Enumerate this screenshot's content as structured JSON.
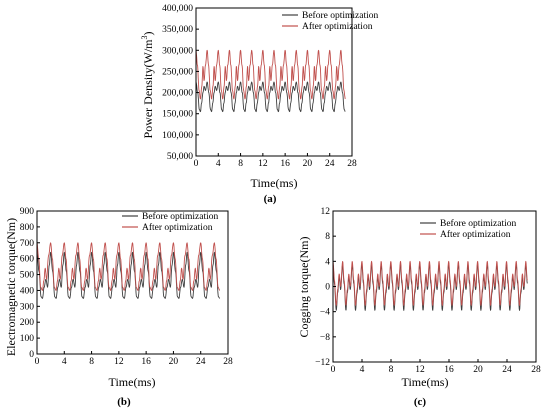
{
  "colors": {
    "before": "#3f3f3f",
    "after": "#c0504d",
    "axis": "#000000",
    "background": "#ffffff"
  },
  "chart_data": [
    {
      "panel": "(a)",
      "type": "line",
      "xlabel": "Time(ms)",
      "ylabel_main": "Power Density(W/m",
      "ylabel_sup": "3",
      "ylabel_close": ")",
      "xlim": [
        0,
        28
      ],
      "ylim": [
        50000,
        400000
      ],
      "xticks": [
        0,
        4,
        8,
        12,
        16,
        20,
        24,
        28
      ],
      "yticks": [
        50000,
        100000,
        150000,
        200000,
        250000,
        300000,
        350000,
        400000
      ],
      "ytick_labels": [
        "50,000",
        "100,000",
        "150,000",
        "200,000",
        "250,000",
        "300,000",
        "350,000",
        "400,000"
      ],
      "xtick_labels": [
        "0",
        "4",
        "8",
        "12",
        "16",
        "20",
        "24",
        "28"
      ],
      "legend_position": "top-right",
      "grid": false,
      "signal_x_range": [
        0,
        26.8
      ],
      "series": [
        {
          "name": "Before optimization",
          "color_key": "before",
          "period_ms": 2.0,
          "waveform": [
            [
              0,
              225000
            ],
            [
              0.3,
              200000
            ],
            [
              0.6,
              160000
            ],
            [
              0.8,
              155000
            ],
            [
              1.0,
              175000
            ],
            [
              1.25,
              200000
            ],
            [
              1.45,
              215000
            ],
            [
              1.7,
              205000
            ],
            [
              2.0,
              225000
            ]
          ]
        },
        {
          "name": "After optimization",
          "color_key": "after",
          "period_ms": 2.0,
          "waveform": [
            [
              0,
              300000
            ],
            [
              0.25,
              265000
            ],
            [
              0.55,
              205000
            ],
            [
              0.8,
              185000
            ],
            [
              1.05,
              215000
            ],
            [
              1.25,
              262000
            ],
            [
              1.45,
              228000
            ],
            [
              1.7,
              265000
            ],
            [
              2.0,
              300000
            ]
          ]
        }
      ]
    },
    {
      "panel": "(b)",
      "type": "line",
      "xlabel": "Time(ms)",
      "ylabel": "Electromagnetic torque(Nm)",
      "xlim": [
        0,
        28
      ],
      "ylim": [
        0,
        900
      ],
      "xticks": [
        0,
        4,
        8,
        12,
        16,
        20,
        24,
        28
      ],
      "yticks": [
        0,
        100,
        200,
        300,
        400,
        500,
        600,
        700,
        800,
        900
      ],
      "ytick_labels": [
        "0",
        "100",
        "200",
        "300",
        "400",
        "500",
        "600",
        "700",
        "800",
        "900"
      ],
      "xtick_labels": [
        "0",
        "4",
        "8",
        "12",
        "16",
        "20",
        "24",
        "28"
      ],
      "legend_position": "top-right",
      "grid": false,
      "signal_x_range": [
        0,
        26.8
      ],
      "series": [
        {
          "name": "Before optimization",
          "color_key": "before",
          "period_ms": 2.0,
          "waveform": [
            [
              0,
              640.0
            ],
            [
              0.3,
              520
            ],
            [
              0.6,
              360
            ],
            [
              0.8,
              350
            ],
            [
              1.05,
              420
            ],
            [
              1.3,
              470
            ],
            [
              1.55,
              420
            ],
            [
              1.8,
              560
            ],
            [
              2.0,
              640
            ]
          ]
        },
        {
          "name": "After optimization",
          "color_key": "after",
          "period_ms": 2.0,
          "waveform": [
            [
              0,
              700
            ],
            [
              0.25,
              600
            ],
            [
              0.55,
              420
            ],
            [
              0.8,
              400
            ],
            [
              1.0,
              460
            ],
            [
              1.2,
              540
            ],
            [
              1.4,
              470
            ],
            [
              1.7,
              620
            ],
            [
              2.0,
              700
            ]
          ]
        }
      ]
    },
    {
      "panel": "(c)",
      "type": "line",
      "xlabel": "Time(ms)",
      "ylabel": "Cogging torque(Nm)",
      "xlim": [
        0,
        28
      ],
      "ylim": [
        -12,
        12
      ],
      "xticks": [
        0,
        4,
        8,
        12,
        16,
        20,
        24,
        28
      ],
      "yticks": [
        -12,
        -8,
        -4,
        0,
        4,
        8,
        12
      ],
      "ytick_labels": [
        "−12",
        "−8",
        "−4",
        "0",
        "4",
        "8",
        "12"
      ],
      "xtick_labels": [
        "0",
        "4",
        "8",
        "12",
        "16",
        "20",
        "24",
        "28"
      ],
      "legend_position": "top-right",
      "grid": false,
      "signal_x_range": [
        0,
        26.8
      ],
      "series": [
        {
          "name": "Before optimization",
          "color_key": "before",
          "period_ms": 1.33,
          "waveform": [
            [
              0,
              3.5
            ],
            [
              0.2,
              0.5
            ],
            [
              0.45,
              -3.8
            ],
            [
              0.65,
              -1.0
            ],
            [
              0.85,
              1.5
            ],
            [
              1.05,
              -0.5
            ],
            [
              1.33,
              3.5
            ]
          ]
        },
        {
          "name": "After optimization",
          "color_key": "after",
          "period_ms": 1.33,
          "waveform": [
            [
              0,
              4.0
            ],
            [
              0.2,
              1.0
            ],
            [
              0.45,
              -3.0
            ],
            [
              0.65,
              -0.5
            ],
            [
              0.85,
              2.0
            ],
            [
              1.05,
              0.0
            ],
            [
              1.33,
              4.0
            ]
          ]
        }
      ]
    }
  ]
}
